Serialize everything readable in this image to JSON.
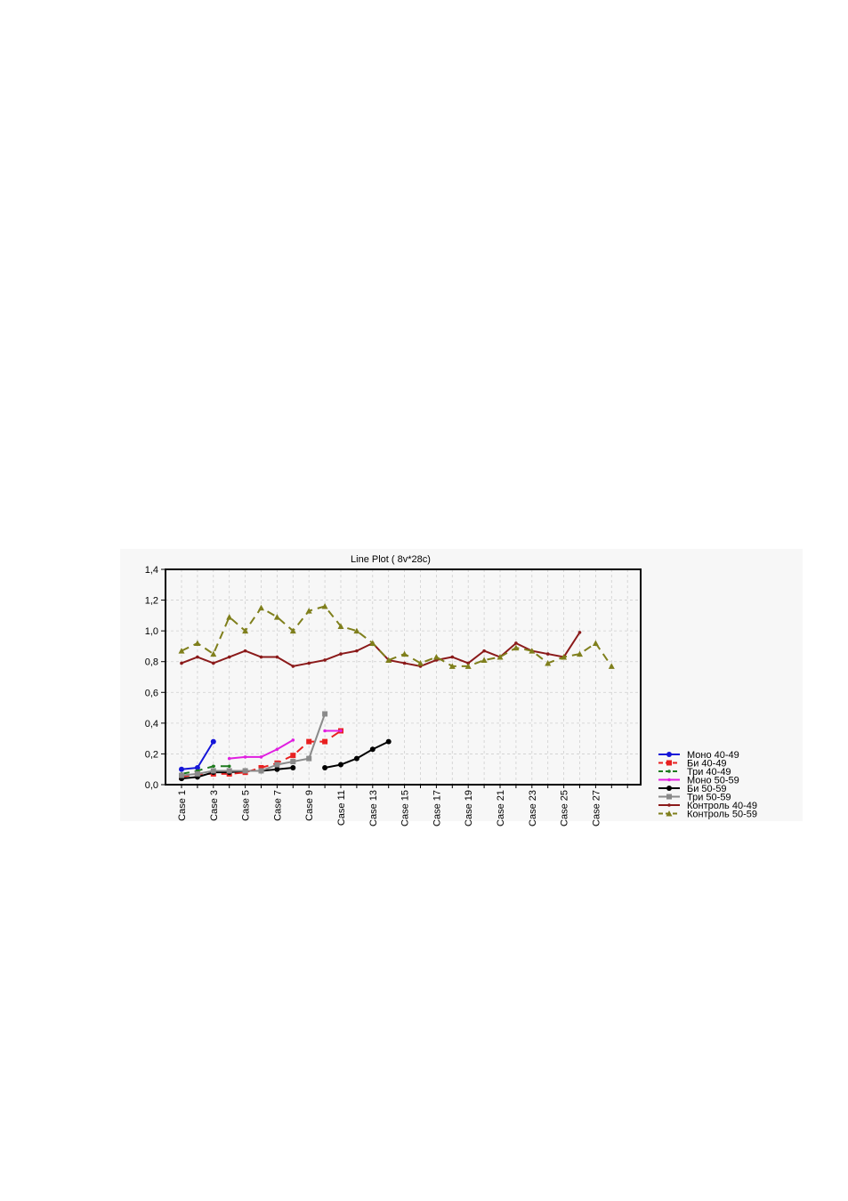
{
  "chart_data": {
    "type": "line",
    "title": "Line Plot ( 8v*28c)",
    "xlabel": "",
    "ylabel": "",
    "ylim": [
      0,
      1.4
    ],
    "yticks": [
      "0,0",
      "0,2",
      "0,4",
      "0,6",
      "0,8",
      "1,0",
      "1,2",
      "1,4"
    ],
    "x_count": 29,
    "x_tick_labels": [
      "Case 1",
      "Case 3",
      "Case 5",
      "Case 7",
      "Case 9",
      "Case 11",
      "Case 13",
      "Case 15",
      "Case 17",
      "Case 19",
      "Case 21",
      "Case 23",
      "Case 25",
      "Case 27"
    ],
    "grid": true,
    "legend_position": "right-bottom",
    "series": [
      {
        "name": "Моно 40-49",
        "color": "#1515d8",
        "dash": "solid",
        "marker": "circle",
        "values": [
          0.1,
          0.11,
          0.28,
          null,
          null,
          null,
          null,
          null,
          null,
          null,
          null,
          null,
          null,
          null,
          null,
          null,
          null,
          null,
          null,
          null,
          null,
          null,
          null,
          null,
          null,
          null,
          null,
          null,
          null
        ]
      },
      {
        "name": "Би 40-49",
        "color": "#e82020",
        "dash": "dash",
        "marker": "square",
        "values": [
          0.05,
          0.07,
          0.07,
          0.07,
          0.08,
          0.11,
          0.14,
          0.19,
          0.28,
          0.28,
          0.35,
          null,
          null,
          null,
          null,
          null,
          null,
          null,
          null,
          null,
          null,
          null,
          null,
          null,
          null,
          null,
          null,
          null,
          null
        ]
      },
      {
        "name": "Три 40-49",
        "color": "#1e7a1e",
        "dash": "dash",
        "marker": "dot",
        "values": [
          0.07,
          0.09,
          0.12,
          0.12,
          null,
          null,
          null,
          null,
          null,
          null,
          null,
          null,
          null,
          null,
          null,
          null,
          null,
          null,
          null,
          null,
          null,
          null,
          null,
          null,
          null,
          null,
          null,
          null,
          null
        ]
      },
      {
        "name": "Моно 50-59",
        "color": "#e020e0",
        "dash": "solid",
        "marker": "dot",
        "values": [
          null,
          null,
          null,
          0.17,
          0.18,
          0.18,
          0.23,
          0.29,
          null,
          0.35,
          0.35,
          null,
          null,
          null,
          null,
          null,
          null,
          null,
          null,
          null,
          null,
          null,
          null,
          null,
          null,
          null,
          null,
          null,
          null
        ]
      },
      {
        "name": "Би 50-59",
        "color": "#000000",
        "dash": "solid",
        "marker": "circle",
        "values": [
          0.04,
          0.05,
          0.08,
          0.08,
          0.09,
          0.09,
          0.1,
          0.11,
          null,
          0.11,
          0.13,
          0.17,
          0.23,
          0.28,
          null,
          null,
          null,
          null,
          null,
          null,
          null,
          null,
          null,
          null,
          null,
          null,
          null,
          null,
          null
        ]
      },
      {
        "name": "Три 50-59",
        "color": "#8a8a8a",
        "dash": "solid",
        "marker": "square",
        "values": [
          0.06,
          0.07,
          0.09,
          0.09,
          0.09,
          0.09,
          0.13,
          0.15,
          0.17,
          0.46,
          null,
          null,
          null,
          null,
          null,
          null,
          null,
          null,
          null,
          null,
          null,
          null,
          null,
          null,
          null,
          null,
          null,
          null,
          null
        ]
      },
      {
        "name": "Контроль 40-49",
        "color": "#8b1a1a",
        "dash": "solid",
        "marker": "dot",
        "values": [
          0.79,
          0.83,
          0.79,
          0.83,
          0.87,
          0.83,
          0.83,
          0.77,
          0.79,
          0.81,
          0.85,
          0.87,
          0.92,
          0.81,
          0.79,
          0.77,
          0.81,
          0.83,
          0.79,
          0.87,
          0.83,
          0.92,
          0.87,
          0.85,
          0.83,
          0.99,
          null,
          null,
          null
        ]
      },
      {
        "name": "Контроль 50-59",
        "color": "#7f7f1c",
        "dash": "dash",
        "marker": "triangle",
        "values": [
          0.87,
          0.92,
          0.85,
          1.09,
          1.0,
          1.15,
          1.09,
          1.0,
          1.13,
          1.16,
          1.03,
          1.0,
          0.92,
          0.81,
          0.85,
          0.79,
          0.83,
          0.77,
          0.77,
          0.81,
          0.83,
          0.89,
          0.87,
          0.79,
          0.83,
          0.85,
          0.92,
          0.77,
          null
        ]
      }
    ]
  }
}
